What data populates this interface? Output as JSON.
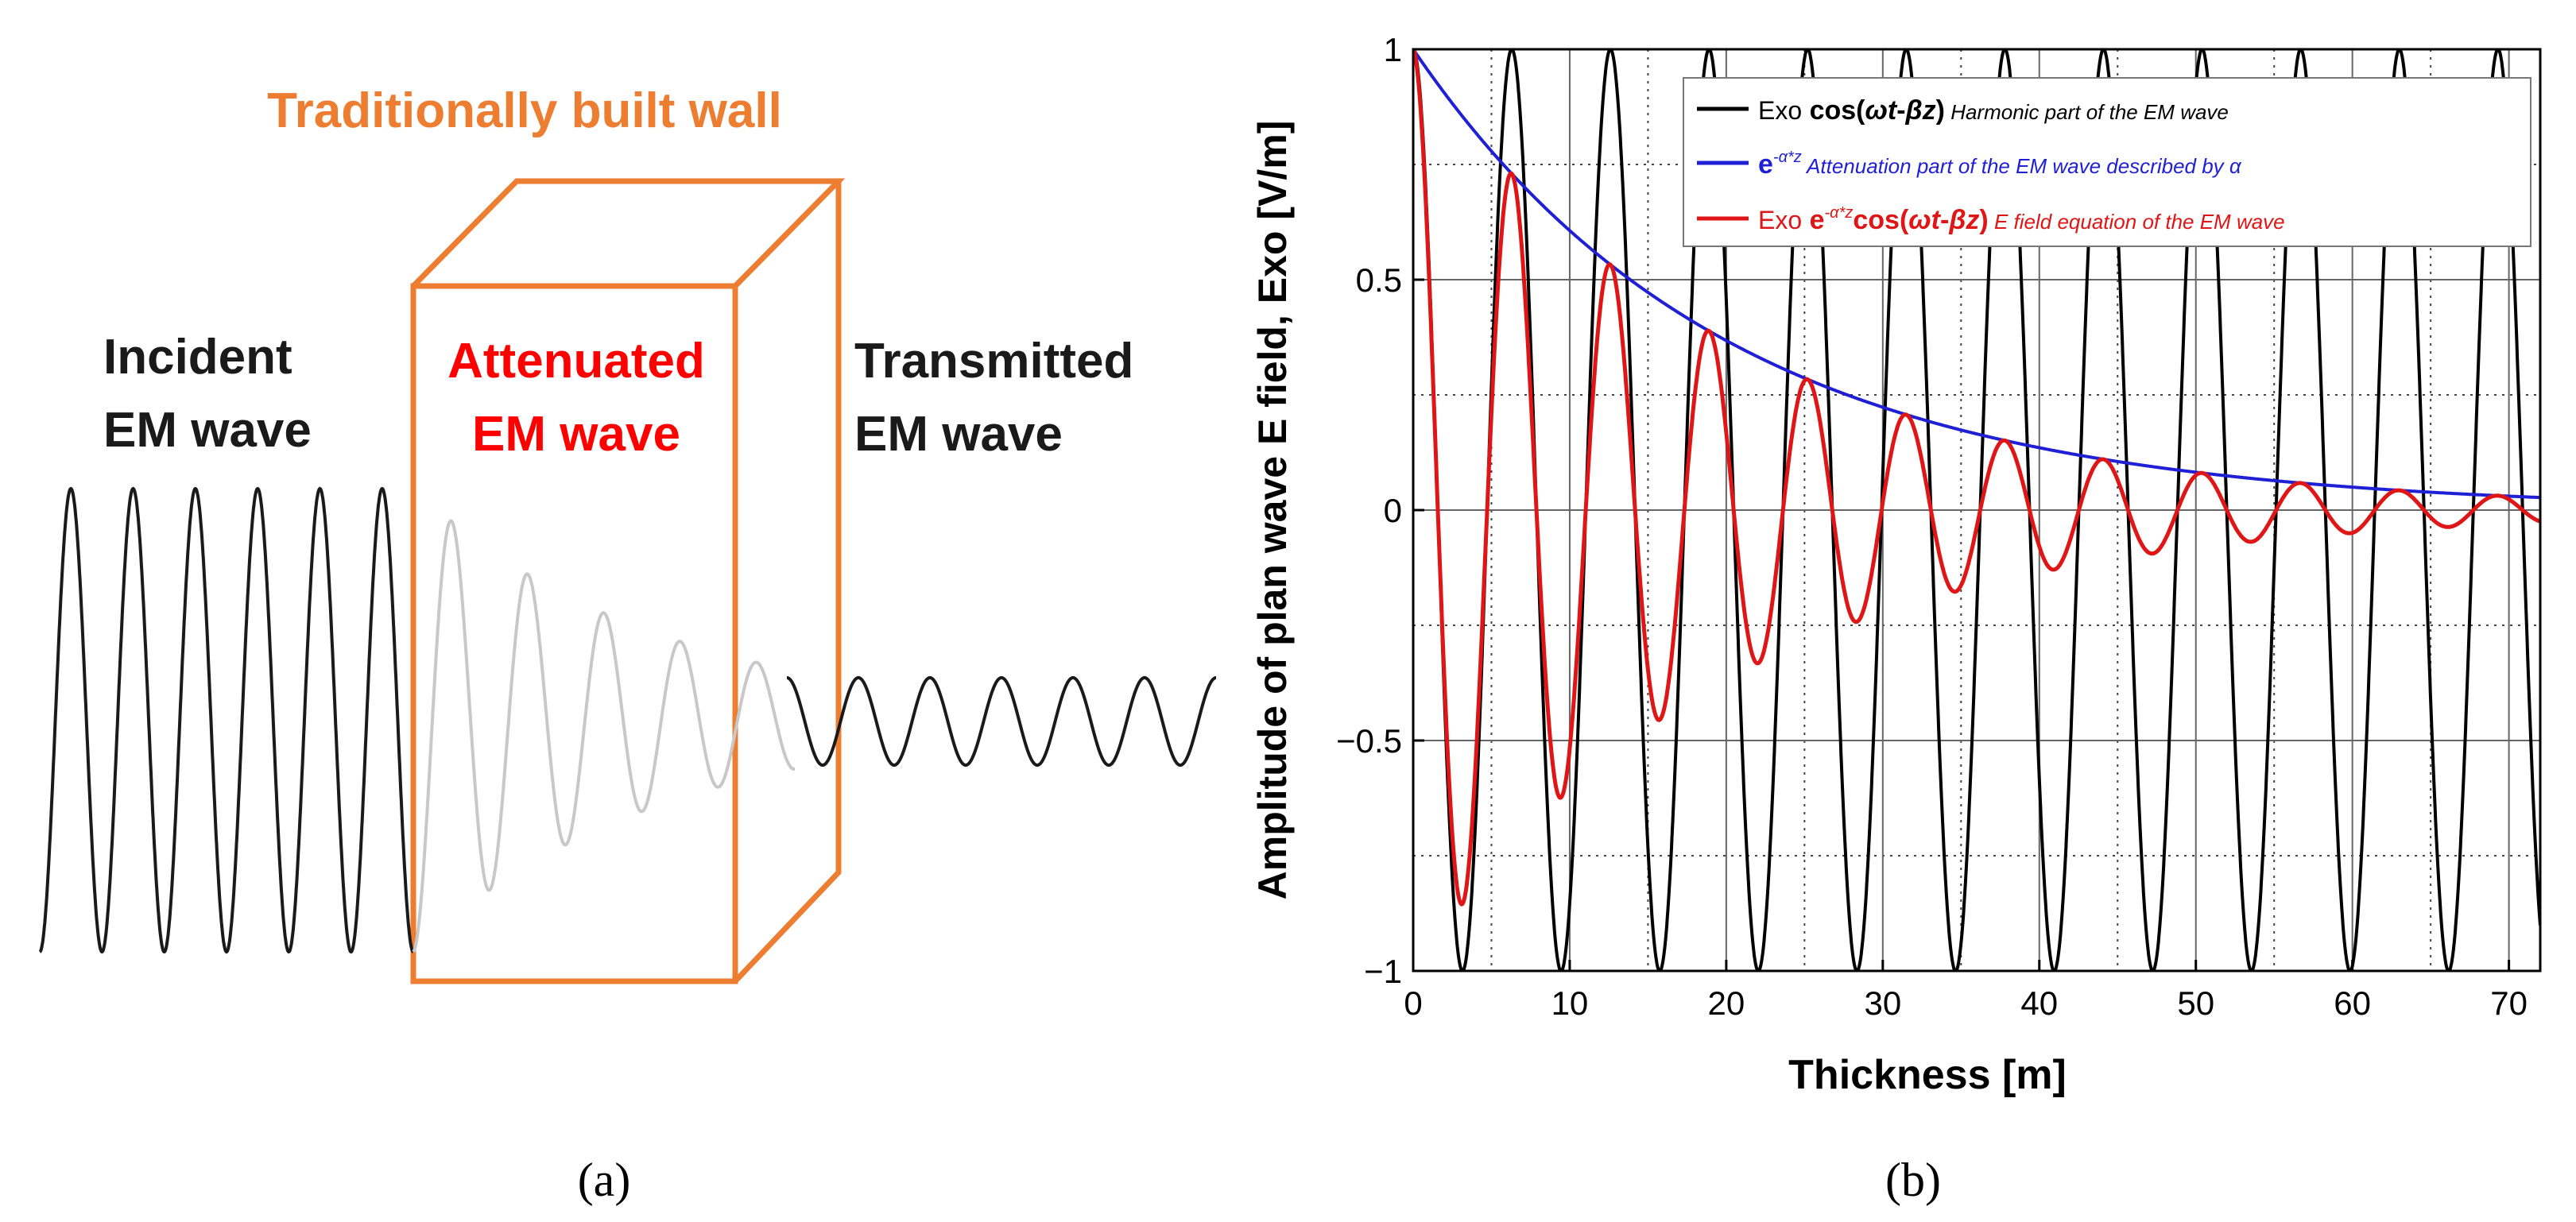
{
  "panel_a": {
    "label": "(a)",
    "wall_label": "Traditionally built wall",
    "incident_label": [
      "Incident",
      "EM wave"
    ],
    "attenuated_label": [
      "Attenuated",
      "EM wave"
    ],
    "transmitted_label": [
      "Transmitted",
      "EM wave"
    ],
    "colors": {
      "wall": "#ED7D31",
      "incident": "#1a1a1a",
      "attenuated_wave": "#c8c8c8",
      "attenuated_text": "#ff0000",
      "transmitted": "#1a1a1a"
    },
    "wave": {
      "incident_cycles": 6,
      "attenuated_cycles": 5,
      "transmitted_cycles": 6
    }
  },
  "panel_b": {
    "label": "(b)"
  },
  "chart_data": {
    "type": "line",
    "title": "",
    "xlabel": "Thickness [m]",
    "ylabel": "Amplitude of plan wave E field, Exo [V/m]",
    "xlim": [
      0,
      72
    ],
    "ylim": [
      -1,
      1
    ],
    "xticks": [
      0,
      10,
      20,
      30,
      40,
      50,
      60,
      70
    ],
    "yticks": [
      -1,
      -0.5,
      0,
      0.5,
      1
    ],
    "ytick_labels": [
      "−1",
      "−0.5",
      "0",
      "0.5",
      "1"
    ],
    "minor_xgrid": [
      5,
      15,
      25,
      35,
      45,
      55,
      65
    ],
    "minor_ygrid": [
      -0.75,
      -0.25,
      0.25,
      0.75
    ],
    "grid": true,
    "legend_position": "top-right",
    "period": 6.3,
    "attenuation_alpha": 0.05,
    "series": [
      {
        "name": "harmonic",
        "legend": [
          "Exo",
          " cos(",
          "ωt",
          "-",
          "βz",
          ")",
          " Harmonic part of  the EM wave"
        ],
        "formula": "cos(2*pi*x/6.3)",
        "color": "#000000"
      },
      {
        "name": "attenuation",
        "legend": [
          "e",
          "-α*z",
          " Attenuation part of the EM wave described by α"
        ],
        "formula": "exp(-0.05*x)",
        "color": "#1f1fd6"
      },
      {
        "name": "e-field",
        "legend": [
          "Exo",
          " e",
          "-α*z",
          "cos(",
          "ωt",
          "-",
          "βz",
          ")",
          " E field equation of the EM wave"
        ],
        "formula": "exp(-0.05*x)*cos(2*pi*x/6.3)",
        "color": "#e01515"
      }
    ]
  }
}
